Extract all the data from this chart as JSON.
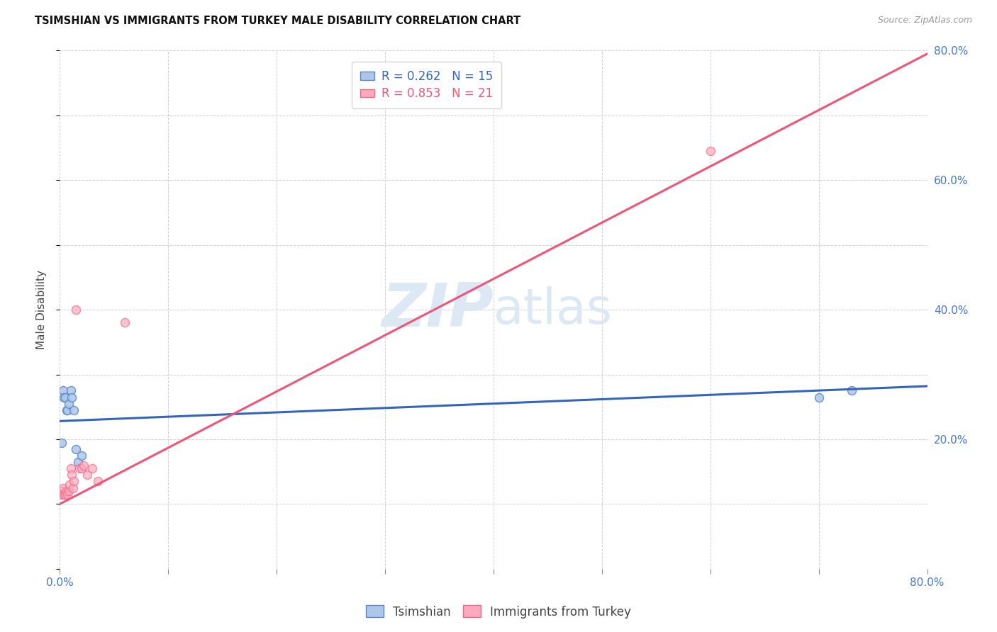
{
  "title": "TSIMSHIAN VS IMMIGRANTS FROM TURKEY MALE DISABILITY CORRELATION CHART",
  "source": "Source: ZipAtlas.com",
  "ylabel": "Male Disability",
  "xlim": [
    0.0,
    0.8
  ],
  "ylim": [
    0.0,
    0.8
  ],
  "grid_color": "#cccccc",
  "background_color": "#ffffff",
  "tsimshian_color": "#aec6e8",
  "tsimshian_edge_color": "#5588cc",
  "turkey_color": "#ffaabc",
  "turkey_edge_color": "#ee6688",
  "tsimshian_line_color": "#3366bb",
  "turkey_line_color": "#ee5577",
  "legend_tsimshian_label": "R = 0.262   N = 15",
  "legend_turkey_label": "R = 0.853   N = 21",
  "legend_bottom_tsimshian": "Tsimshian",
  "legend_bottom_turkey": "Immigrants from Turkey",
  "tsimshian_x": [
    0.002,
    0.003,
    0.004,
    0.005,
    0.006,
    0.007,
    0.008,
    0.01,
    0.011,
    0.013,
    0.015,
    0.017,
    0.02,
    0.7,
    0.73
  ],
  "tsimshian_y": [
    0.195,
    0.275,
    0.265,
    0.265,
    0.245,
    0.245,
    0.255,
    0.275,
    0.265,
    0.245,
    0.185,
    0.165,
    0.175,
    0.265,
    0.275
  ],
  "turkey_x": [
    0.001,
    0.002,
    0.003,
    0.004,
    0.005,
    0.006,
    0.007,
    0.008,
    0.009,
    0.01,
    0.011,
    0.012,
    0.013,
    0.015,
    0.018,
    0.02,
    0.022,
    0.025,
    0.03,
    0.035,
    0.06
  ],
  "turkey_y": [
    0.115,
    0.12,
    0.125,
    0.115,
    0.115,
    0.12,
    0.115,
    0.12,
    0.13,
    0.155,
    0.145,
    0.125,
    0.135,
    0.4,
    0.155,
    0.155,
    0.16,
    0.145,
    0.155,
    0.135,
    0.38
  ],
  "turkey_outlier_x": [
    0.6
  ],
  "turkey_outlier_y": [
    0.645
  ],
  "tsimshian_line_x": [
    0.0,
    0.8
  ],
  "tsimshian_line_y": [
    0.228,
    0.282
  ],
  "turkey_line_x": [
    0.0,
    0.8
  ],
  "turkey_line_y": [
    0.1,
    0.795
  ],
  "marker_size": 75,
  "line_width": 2.2
}
